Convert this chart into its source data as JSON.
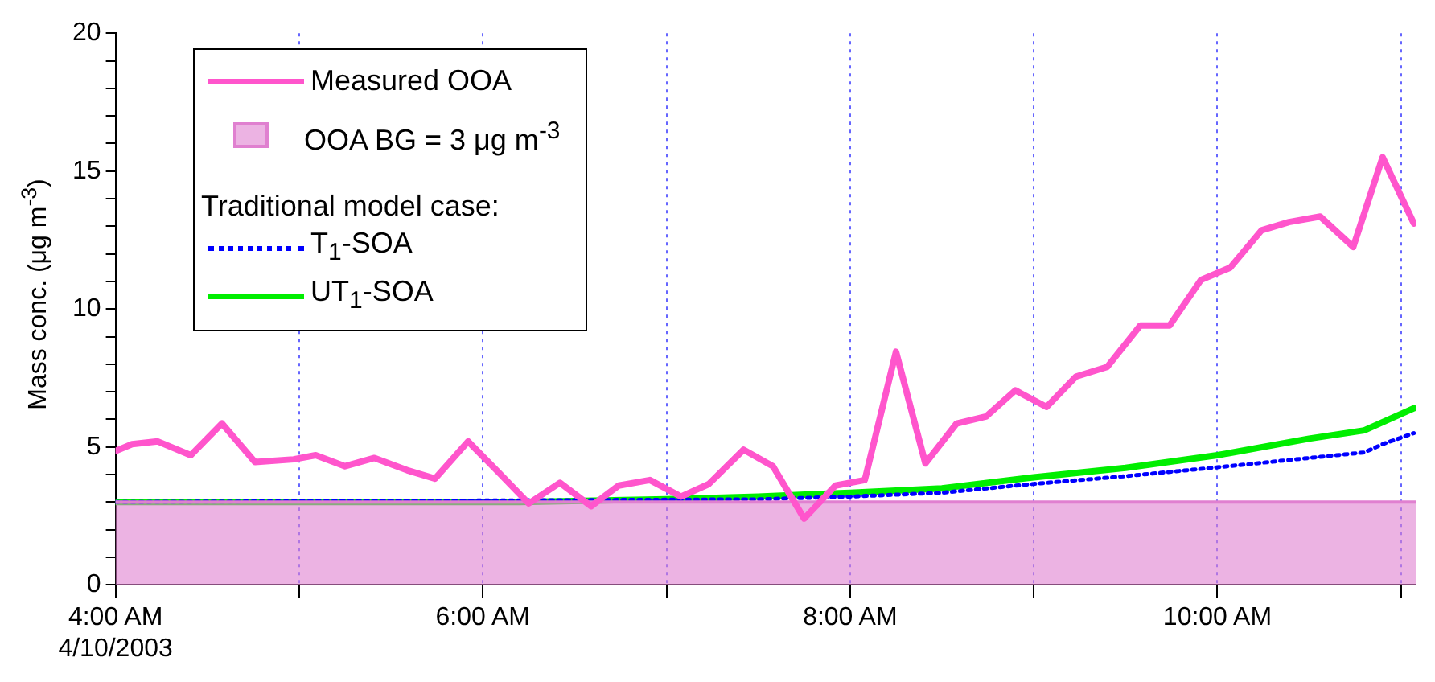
{
  "chart_data": {
    "type": "line",
    "ylabel": "Mass conc. (μg m$^{-3}$)",
    "legend_title": "Traditional model case:",
    "legend": "top left",
    "grid": "x",
    "xlim": [
      4,
      11.08
    ],
    "xticks": [
      {
        "value": 4,
        "label": "4:00 AM\n4/10/2003"
      },
      {
        "value": 5,
        "label": null
      },
      {
        "value": 6,
        "label": "6:00 AM"
      },
      {
        "value": 7,
        "label": null
      },
      {
        "value": 8,
        "label": "8:00 AM"
      },
      {
        "value": 9,
        "label": null
      },
      {
        "value": 10,
        "label": "10:00 AM"
      },
      {
        "value": 11,
        "label": null
      }
    ],
    "ylim": [
      0,
      20
    ],
    "yticks": [
      0,
      {
        "value": 1,
        "label": null
      },
      {
        "value": 2,
        "label": null
      },
      {
        "value": 3,
        "label": null
      },
      {
        "value": 4,
        "label": null
      },
      5,
      {
        "value": 6,
        "label": null
      },
      {
        "value": 7,
        "label": null
      },
      {
        "value": 8,
        "label": null
      },
      {
        "value": 9,
        "label": null
      },
      10,
      {
        "value": 11,
        "label": null
      },
      {
        "value": 12,
        "label": null
      },
      {
        "value": 13,
        "label": null
      },
      {
        "value": 14,
        "label": null
      },
      15,
      {
        "value": 16,
        "label": null
      },
      {
        "value": 17,
        "label": null
      },
      {
        "value": 18,
        "label": null
      },
      {
        "value": 19,
        "label": null
      },
      20
    ],
    "series": [
      {
        "name": "Measured OOA",
        "type": "line",
        "color": "#ff55cc",
        "x": [
          4.0,
          4.09,
          4.23,
          4.41,
          4.58,
          4.76,
          4.97,
          5.09,
          5.25,
          5.41,
          5.59,
          5.74,
          5.92,
          6.09,
          6.25,
          6.42,
          6.59,
          6.74,
          6.91,
          7.08,
          7.23,
          7.42,
          7.58,
          7.75,
          7.92,
          8.08,
          8.25,
          8.41,
          8.58,
          8.74,
          8.9,
          9.07,
          9.23,
          9.4,
          9.58,
          9.74,
          9.91,
          10.07,
          10.24,
          10.39,
          10.56,
          10.74,
          10.9,
          11.07
        ],
        "values": [
          4.85,
          5.1,
          5.2,
          4.7,
          5.85,
          4.45,
          4.55,
          4.7,
          4.3,
          4.6,
          4.15,
          3.85,
          5.2,
          4.05,
          2.95,
          3.7,
          2.85,
          3.6,
          3.8,
          3.2,
          3.65,
          4.9,
          4.3,
          2.4,
          3.6,
          3.8,
          8.45,
          4.4,
          5.85,
          6.1,
          7.05,
          6.45,
          7.55,
          7.9,
          9.4,
          9.4,
          11.05,
          11.5,
          12.85,
          13.15,
          13.35,
          12.25,
          15.5,
          13.1
        ]
      },
      {
        "name": "OOA BG = 3 μg m$^{-3}$",
        "type": "area",
        "color": "#e080d0",
        "x": [
          4,
          11.08
        ],
        "values": [
          3,
          3
        ]
      },
      {
        "name": "T$_{1}$-SOA",
        "type": "line",
        "line_style": "dotted",
        "color": "#0000ff",
        "x": [
          4.0,
          7.5,
          8.0,
          8.5,
          9.0,
          9.5,
          10.0,
          10.5,
          10.8,
          10.9,
          11.07
        ],
        "values": [
          3.0,
          3.1,
          3.2,
          3.34,
          3.66,
          3.94,
          4.26,
          4.6,
          4.8,
          5.1,
          5.5
        ]
      },
      {
        "name": "UT$_{1}$-SOA",
        "type": "line",
        "color": "#00ee00",
        "x": [
          4.0,
          6.2,
          7.0,
          7.5,
          8.0,
          8.5,
          9.0,
          9.5,
          10.0,
          10.5,
          10.8,
          11.07
        ],
        "values": [
          3.0,
          3.0,
          3.1,
          3.2,
          3.34,
          3.5,
          3.9,
          4.24,
          4.7,
          5.3,
          5.6,
          6.4
        ]
      }
    ]
  }
}
